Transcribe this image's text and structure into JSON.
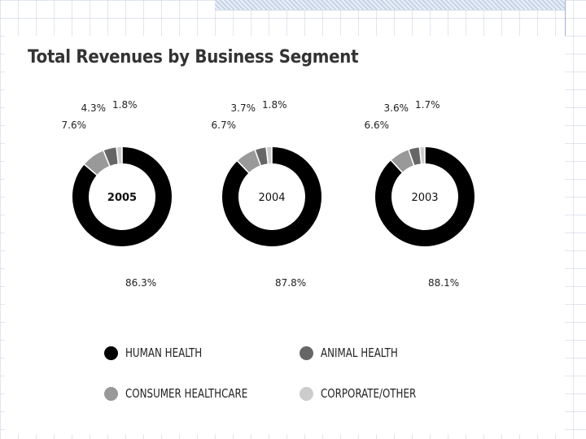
{
  "title": "Total Revenues by Business Segment",
  "colors": {
    "human_health": "#000000",
    "animal_health": "#666666",
    "consumer_healthcare": "#999999",
    "corporate_other": "#cccccc"
  },
  "legend": [
    {
      "label": "HUMAN HEALTH",
      "color": "#000000"
    },
    {
      "label": "ANIMAL HEALTH",
      "color": "#666666"
    },
    {
      "label": "CONSUMER HEALTHCARE",
      "color": "#999999"
    },
    {
      "label": "CORPORATE/OTHER",
      "color": "#cccccc"
    }
  ],
  "chart_data": [
    {
      "type": "pie",
      "title": "2005",
      "categories": [
        "HUMAN HEALTH",
        "CONSUMER HEALTHCARE",
        "ANIMAL HEALTH",
        "CORPORATE/OTHER"
      ],
      "values": [
        86.3,
        7.6,
        4.3,
        1.8
      ],
      "labels": [
        "86.3%",
        "7.6%",
        "4.3%",
        "1.8%"
      ]
    },
    {
      "type": "pie",
      "title": "2004",
      "categories": [
        "HUMAN HEALTH",
        "CONSUMER HEALTHCARE",
        "ANIMAL HEALTH",
        "CORPORATE/OTHER"
      ],
      "values": [
        87.8,
        6.7,
        3.7,
        1.8
      ],
      "labels": [
        "87.8%",
        "6.7%",
        "3.7%",
        "1.8%"
      ]
    },
    {
      "type": "pie",
      "title": "2003",
      "categories": [
        "HUMAN HEALTH",
        "CONSUMER HEALTHCARE",
        "ANIMAL HEALTH",
        "CORPORATE/OTHER"
      ],
      "values": [
        88.1,
        6.6,
        3.6,
        1.7
      ],
      "labels": [
        "88.1%",
        "6.6%",
        "3.6%",
        "1.7%"
      ]
    }
  ]
}
